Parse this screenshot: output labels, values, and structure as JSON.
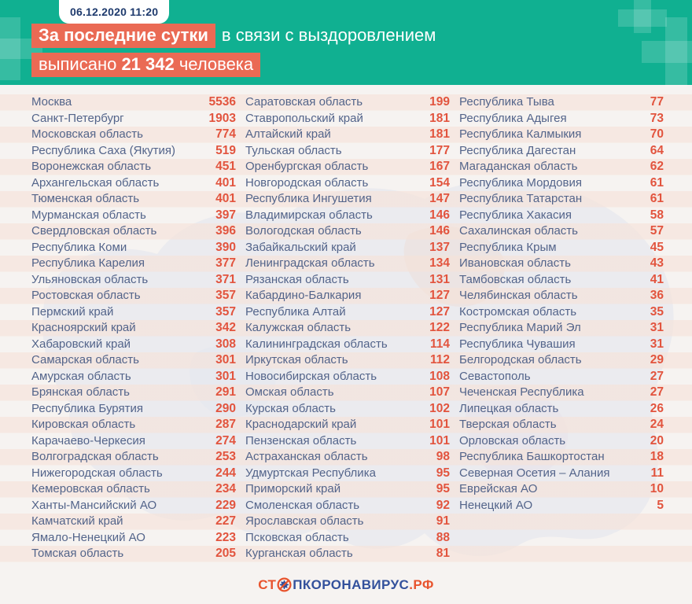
{
  "header": {
    "date": "06.12.2020 11:20",
    "line1_highlight": "За последние сутки",
    "line1_rest": "в связи с выздоровлением",
    "line2_pre": "выписано ",
    "line2_number": "21 342",
    "line2_post": " человека"
  },
  "footer": {
    "logo_st": "СТ",
    "logo_main": "ПКОРОНАВИРУС",
    "logo_rf": ".РФ"
  },
  "colors": {
    "header_green": "#10b091",
    "highlight_orange": "#ea6a54",
    "value_red": "#e2543e",
    "region_blue_gray": "#53648a",
    "date_navy": "#1e3a6d",
    "logo_navy": "#33519c",
    "logo_orange": "#e8542e",
    "background": "#f6f3f1"
  },
  "chart_data": {
    "type": "table",
    "title": "За последние сутки в связи с выздоровлением выписано 21 342 человека",
    "timestamp": "06.12.2020 11:20",
    "discharged_total": "21 342",
    "columns": [
      {
        "rows": [
          {
            "region": "Москва",
            "value": 5536
          },
          {
            "region": "Санкт-Петербург",
            "value": 1903
          },
          {
            "region": "Московская область",
            "value": 774
          },
          {
            "region": "Республика Саха (Якутия)",
            "value": 519
          },
          {
            "region": "Воронежская область",
            "value": 451
          },
          {
            "region": "Архангельская область",
            "value": 401
          },
          {
            "region": "Тюменская область",
            "value": 401
          },
          {
            "region": "Мурманская область",
            "value": 397
          },
          {
            "region": "Свердловская область",
            "value": 396
          },
          {
            "region": "Республика Коми",
            "value": 390
          },
          {
            "region": "Республика Карелия",
            "value": 377
          },
          {
            "region": "Ульяновская область",
            "value": 371
          },
          {
            "region": "Ростовская область",
            "value": 357
          },
          {
            "region": "Пермский край",
            "value": 357
          },
          {
            "region": "Красноярский край",
            "value": 342
          },
          {
            "region": "Хабаровский край",
            "value": 308
          },
          {
            "region": "Самарская область",
            "value": 301
          },
          {
            "region": "Амурская область",
            "value": 301
          },
          {
            "region": "Брянская область",
            "value": 291
          },
          {
            "region": "Республика Бурятия",
            "value": 290
          },
          {
            "region": "Кировская область",
            "value": 287
          },
          {
            "region": "Карачаево-Черкесия",
            "value": 274
          },
          {
            "region": "Волгоградская область",
            "value": 253
          },
          {
            "region": "Нижегородская область",
            "value": 244
          },
          {
            "region": "Кемеровская область",
            "value": 234
          },
          {
            "region": "Ханты-Мансийский АО",
            "value": 229
          },
          {
            "region": "Камчатский край",
            "value": 227
          },
          {
            "region": "Ямало-Ненецкий АО",
            "value": 223
          },
          {
            "region": "Томская область",
            "value": 205
          }
        ]
      },
      {
        "rows": [
          {
            "region": "Саратовская область",
            "value": 199
          },
          {
            "region": "Ставропольский край",
            "value": 181
          },
          {
            "region": "Алтайский край",
            "value": 181
          },
          {
            "region": "Тульская область",
            "value": 177
          },
          {
            "region": "Оренбургская область",
            "value": 167
          },
          {
            "region": "Новгородская область",
            "value": 154
          },
          {
            "region": "Республика Ингушетия",
            "value": 147
          },
          {
            "region": "Владимирская область",
            "value": 146
          },
          {
            "region": "Вологодская область",
            "value": 146
          },
          {
            "region": "Забайкальский край",
            "value": 137
          },
          {
            "region": "Ленинградская область",
            "value": 134
          },
          {
            "region": "Рязанская область",
            "value": 131
          },
          {
            "region": "Кабардино-Балкария",
            "value": 127
          },
          {
            "region": "Республика Алтай",
            "value": 127
          },
          {
            "region": "Калужская область",
            "value": 122
          },
          {
            "region": "Калининградская область",
            "value": 114
          },
          {
            "region": "Иркутская область",
            "value": 112
          },
          {
            "region": "Новосибирская область",
            "value": 108
          },
          {
            "region": "Омская область",
            "value": 107
          },
          {
            "region": "Курская область",
            "value": 102
          },
          {
            "region": "Краснодарский край",
            "value": 101
          },
          {
            "region": "Пензенская область",
            "value": 101
          },
          {
            "region": "Астраханская область",
            "value": 98
          },
          {
            "region": "Удмуртская Республика",
            "value": 95
          },
          {
            "region": "Приморский край",
            "value": 95
          },
          {
            "region": "Смоленская область",
            "value": 92
          },
          {
            "region": "Ярославская область",
            "value": 91
          },
          {
            "region": "Псковская область",
            "value": 88
          },
          {
            "region": "Курганская область",
            "value": 81
          }
        ]
      },
      {
        "rows": [
          {
            "region": "Республика Тыва",
            "value": 77
          },
          {
            "region": "Республика Адыгея",
            "value": 73
          },
          {
            "region": "Республика Калмыкия",
            "value": 70
          },
          {
            "region": "Республика Дагестан",
            "value": 64
          },
          {
            "region": "Магаданская область",
            "value": 62
          },
          {
            "region": "Республика Мордовия",
            "value": 61
          },
          {
            "region": "Республика Татарстан",
            "value": 61
          },
          {
            "region": "Республика Хакасия",
            "value": 58
          },
          {
            "region": "Сахалинская область",
            "value": 57
          },
          {
            "region": "Республика Крым",
            "value": 45
          },
          {
            "region": "Ивановская область",
            "value": 43
          },
          {
            "region": "Тамбовская область",
            "value": 41
          },
          {
            "region": "Челябинская область",
            "value": 36
          },
          {
            "region": "Костромская область",
            "value": 35
          },
          {
            "region": "Республика Марий Эл",
            "value": 31
          },
          {
            "region": "Республика Чувашия",
            "value": 31
          },
          {
            "region": "Белгородская область",
            "value": 29
          },
          {
            "region": "Севастополь",
            "value": 27
          },
          {
            "region": "Чеченская Республика",
            "value": 27
          },
          {
            "region": "Липецкая область",
            "value": 26
          },
          {
            "region": "Тверская область",
            "value": 24
          },
          {
            "region": "Орловская область",
            "value": 20
          },
          {
            "region": "Республика Башкортостан",
            "value": 18
          },
          {
            "region": "Северная Осетия – Алания",
            "value": 11
          },
          {
            "region": "Еврейская АО",
            "value": 10
          },
          {
            "region": "Ненецкий АО",
            "value": 5
          }
        ]
      }
    ]
  }
}
